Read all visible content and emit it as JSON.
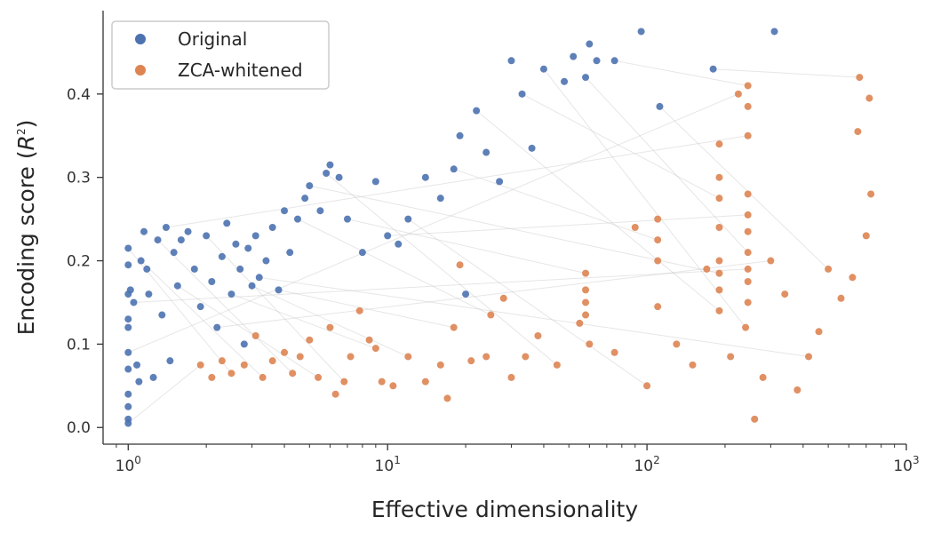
{
  "chart_data": {
    "type": "scatter",
    "xlabel": "Effective dimensionality",
    "ylabel": "Encoding score (R²)",
    "ylabel_parts": {
      "prefix": "Encoding score (",
      "var": "R",
      "exp": "2",
      "suffix": ")"
    },
    "x_scale": "log",
    "xlim": [
      0.8,
      1000
    ],
    "ylim": [
      -0.02,
      0.5
    ],
    "x_ticks": [
      {
        "value": 1,
        "base": "10",
        "exp": "0"
      },
      {
        "value": 10,
        "base": "10",
        "exp": "1"
      },
      {
        "value": 100,
        "base": "10",
        "exp": "2"
      },
      {
        "value": 1000,
        "base": "10",
        "exp": "3"
      }
    ],
    "y_ticks": [
      {
        "value": 0.0,
        "label": "0.0"
      },
      {
        "value": 0.1,
        "label": "0.1"
      },
      {
        "value": 0.2,
        "label": "0.2"
      },
      {
        "value": 0.3,
        "label": "0.3"
      },
      {
        "value": 0.4,
        "label": "0.4"
      }
    ],
    "grid": false,
    "legend_position": "top-left",
    "connecting_lines": true,
    "series": [
      {
        "name": "Original",
        "color": "#4c72b0",
        "points": [
          [
            1.0,
            0.005
          ],
          [
            1.0,
            0.01
          ],
          [
            1.0,
            0.025
          ],
          [
            1.0,
            0.04
          ],
          [
            1.0,
            0.07
          ],
          [
            1.0,
            0.09
          ],
          [
            1.0,
            0.12
          ],
          [
            1.0,
            0.13
          ],
          [
            1.0,
            0.16
          ],
          [
            1.0,
            0.195
          ],
          [
            1.0,
            0.215
          ],
          [
            1.02,
            0.165
          ],
          [
            1.05,
            0.15
          ],
          [
            1.08,
            0.075
          ],
          [
            1.1,
            0.055
          ],
          [
            1.12,
            0.2
          ],
          [
            1.15,
            0.235
          ],
          [
            1.18,
            0.19
          ],
          [
            1.2,
            0.16
          ],
          [
            1.25,
            0.06
          ],
          [
            1.3,
            0.225
          ],
          [
            1.35,
            0.135
          ],
          [
            1.4,
            0.24
          ],
          [
            1.45,
            0.08
          ],
          [
            1.5,
            0.21
          ],
          [
            1.55,
            0.17
          ],
          [
            1.6,
            0.225
          ],
          [
            1.7,
            0.235
          ],
          [
            1.8,
            0.19
          ],
          [
            1.9,
            0.145
          ],
          [
            2.0,
            0.23
          ],
          [
            2.1,
            0.175
          ],
          [
            2.2,
            0.12
          ],
          [
            2.3,
            0.205
          ],
          [
            2.4,
            0.245
          ],
          [
            2.5,
            0.16
          ],
          [
            2.6,
            0.22
          ],
          [
            2.7,
            0.19
          ],
          [
            2.8,
            0.1
          ],
          [
            2.9,
            0.215
          ],
          [
            3.0,
            0.17
          ],
          [
            3.1,
            0.23
          ],
          [
            3.2,
            0.18
          ],
          [
            3.4,
            0.2
          ],
          [
            3.6,
            0.24
          ],
          [
            3.8,
            0.165
          ],
          [
            4.0,
            0.26
          ],
          [
            4.2,
            0.21
          ],
          [
            4.5,
            0.25
          ],
          [
            4.8,
            0.275
          ],
          [
            5.0,
            0.29
          ],
          [
            5.5,
            0.26
          ],
          [
            5.8,
            0.305
          ],
          [
            6.0,
            0.315
          ],
          [
            6.5,
            0.3
          ],
          [
            7.0,
            0.25
          ],
          [
            8.0,
            0.21
          ],
          [
            9.0,
            0.295
          ],
          [
            10.0,
            0.23
          ],
          [
            11.0,
            0.22
          ],
          [
            12.0,
            0.25
          ],
          [
            14.0,
            0.3
          ],
          [
            16.0,
            0.275
          ],
          [
            18.0,
            0.31
          ],
          [
            19.0,
            0.35
          ],
          [
            20.0,
            0.16
          ],
          [
            22.0,
            0.38
          ],
          [
            24.0,
            0.33
          ],
          [
            27.0,
            0.295
          ],
          [
            30.0,
            0.44
          ],
          [
            33.0,
            0.4
          ],
          [
            36.0,
            0.335
          ],
          [
            40.0,
            0.43
          ],
          [
            48.0,
            0.415
          ],
          [
            52.0,
            0.445
          ],
          [
            58.0,
            0.42
          ],
          [
            60.0,
            0.46
          ],
          [
            64.0,
            0.44
          ],
          [
            75.0,
            0.44
          ],
          [
            95.0,
            0.475
          ],
          [
            112.0,
            0.385
          ],
          [
            180.0,
            0.43
          ],
          [
            310.0,
            0.475
          ]
        ]
      },
      {
        "name": "ZCA-whitened",
        "color": "#dd8452",
        "points": [
          [
            1.9,
            0.075
          ],
          [
            2.1,
            0.06
          ],
          [
            2.3,
            0.08
          ],
          [
            2.5,
            0.065
          ],
          [
            2.8,
            0.075
          ],
          [
            3.1,
            0.11
          ],
          [
            3.3,
            0.06
          ],
          [
            3.6,
            0.08
          ],
          [
            4.0,
            0.09
          ],
          [
            4.3,
            0.065
          ],
          [
            4.6,
            0.085
          ],
          [
            5.0,
            0.105
          ],
          [
            5.4,
            0.06
          ],
          [
            6.0,
            0.12
          ],
          [
            6.3,
            0.04
          ],
          [
            6.8,
            0.055
          ],
          [
            7.2,
            0.085
          ],
          [
            7.8,
            0.14
          ],
          [
            8.5,
            0.105
          ],
          [
            9.0,
            0.095
          ],
          [
            9.5,
            0.055
          ],
          [
            10.5,
            0.05
          ],
          [
            12.0,
            0.085
          ],
          [
            14.0,
            0.055
          ],
          [
            16.0,
            0.075
          ],
          [
            17.0,
            0.035
          ],
          [
            18.0,
            0.12
          ],
          [
            19.0,
            0.195
          ],
          [
            21.0,
            0.08
          ],
          [
            24.0,
            0.085
          ],
          [
            25.0,
            0.135
          ],
          [
            28.0,
            0.155
          ],
          [
            30.0,
            0.06
          ],
          [
            34.0,
            0.085
          ],
          [
            38.0,
            0.11
          ],
          [
            45.0,
            0.075
          ],
          [
            55.0,
            0.125
          ],
          [
            58.0,
            0.135
          ],
          [
            58.0,
            0.15
          ],
          [
            58.0,
            0.165
          ],
          [
            58.0,
            0.185
          ],
          [
            60.0,
            0.1
          ],
          [
            75.0,
            0.09
          ],
          [
            90.0,
            0.24
          ],
          [
            100.0,
            0.05
          ],
          [
            110.0,
            0.145
          ],
          [
            110.0,
            0.2
          ],
          [
            110.0,
            0.225
          ],
          [
            110.0,
            0.25
          ],
          [
            130.0,
            0.1
          ],
          [
            150.0,
            0.075
          ],
          [
            170.0,
            0.19
          ],
          [
            190.0,
            0.14
          ],
          [
            190.0,
            0.165
          ],
          [
            190.0,
            0.185
          ],
          [
            190.0,
            0.2
          ],
          [
            190.0,
            0.24
          ],
          [
            190.0,
            0.275
          ],
          [
            190.0,
            0.3
          ],
          [
            190.0,
            0.34
          ],
          [
            210.0,
            0.085
          ],
          [
            225.0,
            0.4
          ],
          [
            240.0,
            0.12
          ],
          [
            245.0,
            0.15
          ],
          [
            245.0,
            0.175
          ],
          [
            245.0,
            0.19
          ],
          [
            245.0,
            0.21
          ],
          [
            245.0,
            0.235
          ],
          [
            245.0,
            0.255
          ],
          [
            245.0,
            0.28
          ],
          [
            245.0,
            0.35
          ],
          [
            245.0,
            0.385
          ],
          [
            245.0,
            0.41
          ],
          [
            260.0,
            0.01
          ],
          [
            280.0,
            0.06
          ],
          [
            300.0,
            0.2
          ],
          [
            340.0,
            0.16
          ],
          [
            380.0,
            0.045
          ],
          [
            420.0,
            0.085
          ],
          [
            460.0,
            0.115
          ],
          [
            500.0,
            0.19
          ],
          [
            560.0,
            0.155
          ],
          [
            620.0,
            0.18
          ],
          [
            650.0,
            0.355
          ],
          [
            660.0,
            0.42
          ],
          [
            700.0,
            0.23
          ],
          [
            720.0,
            0.395
          ],
          [
            730.0,
            0.28
          ]
        ]
      }
    ],
    "pairs": [
      [
        0,
        0
      ],
      [
        10,
        3
      ],
      [
        15,
        6
      ],
      [
        20,
        9
      ],
      [
        25,
        12
      ],
      [
        30,
        15
      ],
      [
        35,
        19
      ],
      [
        40,
        22
      ],
      [
        45,
        26
      ],
      [
        48,
        30
      ],
      [
        52,
        35
      ],
      [
        55,
        40
      ],
      [
        60,
        44
      ],
      [
        63,
        47
      ],
      [
        66,
        52
      ],
      [
        70,
        57
      ],
      [
        72,
        62
      ],
      [
        75,
        66
      ],
      [
        78,
        72
      ],
      [
        80,
        80
      ],
      [
        81,
        84
      ],
      [
        5,
        61
      ],
      [
        12,
        65
      ],
      [
        22,
        70
      ],
      [
        32,
        75
      ],
      [
        42,
        78
      ],
      [
        50,
        54
      ],
      [
        58,
        68
      ]
    ]
  }
}
